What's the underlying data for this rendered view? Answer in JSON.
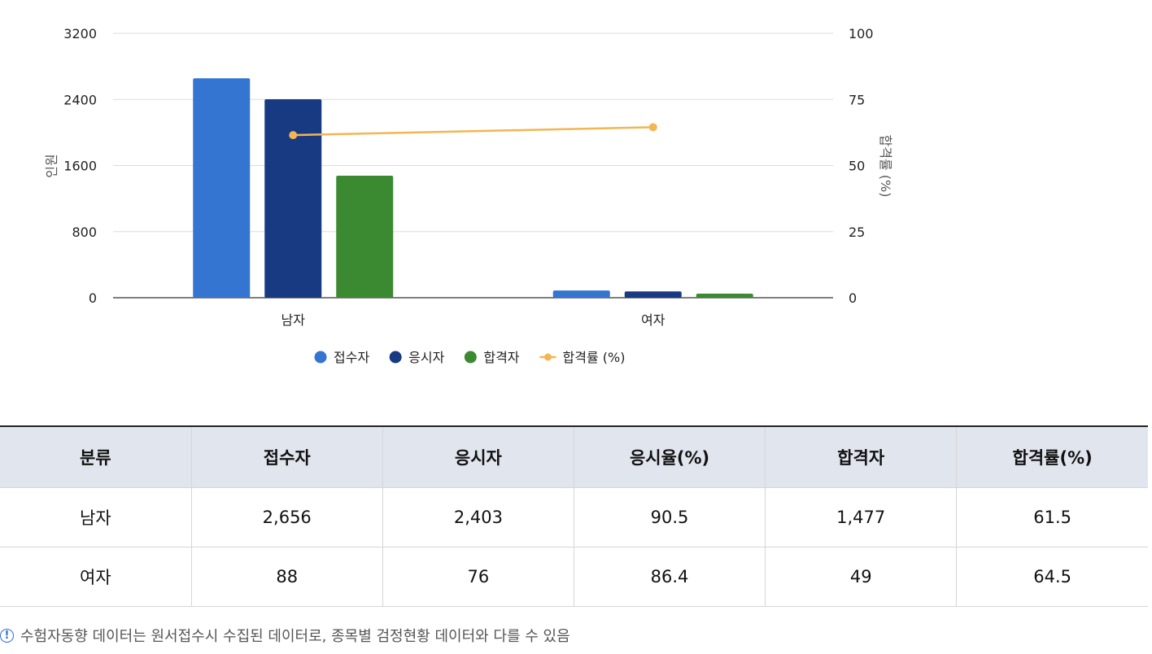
{
  "chart_data": {
    "type": "bar",
    "categories": [
      "남자",
      "여자"
    ],
    "series": [
      {
        "name": "접수자",
        "values": [
          2656,
          88
        ],
        "color": "#3375d0",
        "axis": "left"
      },
      {
        "name": "응시자",
        "values": [
          2403,
          76
        ],
        "color": "#183a82",
        "axis": "left"
      },
      {
        "name": "합격자",
        "values": [
          1477,
          49
        ],
        "color": "#3b8a31",
        "axis": "left"
      },
      {
        "name": "합격률 (%)",
        "values": [
          61.5,
          64.5
        ],
        "color": "#f4b552",
        "axis": "right",
        "type": "line"
      }
    ],
    "ylabel": "인원",
    "ylabel_right": "합격률 (%)",
    "ylim": [
      0,
      3200
    ],
    "ylim_right": [
      0,
      100
    ],
    "yticks": [
      "0",
      "800",
      "1600",
      "2400",
      "3200"
    ],
    "yticks_right": [
      "0",
      "25",
      "50",
      "75",
      "100"
    ],
    "grid": true,
    "legend_position": "bottom"
  },
  "table": {
    "headers": [
      "분류",
      "접수자",
      "응시자",
      "응시율(%)",
      "합격자",
      "합격률(%)"
    ],
    "rows": [
      [
        "남자",
        "2,656",
        "2,403",
        "90.5",
        "1,477",
        "61.5"
      ],
      [
        "여자",
        "88",
        "76",
        "86.4",
        "49",
        "64.5"
      ]
    ]
  },
  "footnote": {
    "icon": "exclamation-circle-icon",
    "text": "수험자동향 데이터는 원서접수시 수집된 데이터로, 종목별 검정현황 데이터와 다를 수 있음"
  }
}
